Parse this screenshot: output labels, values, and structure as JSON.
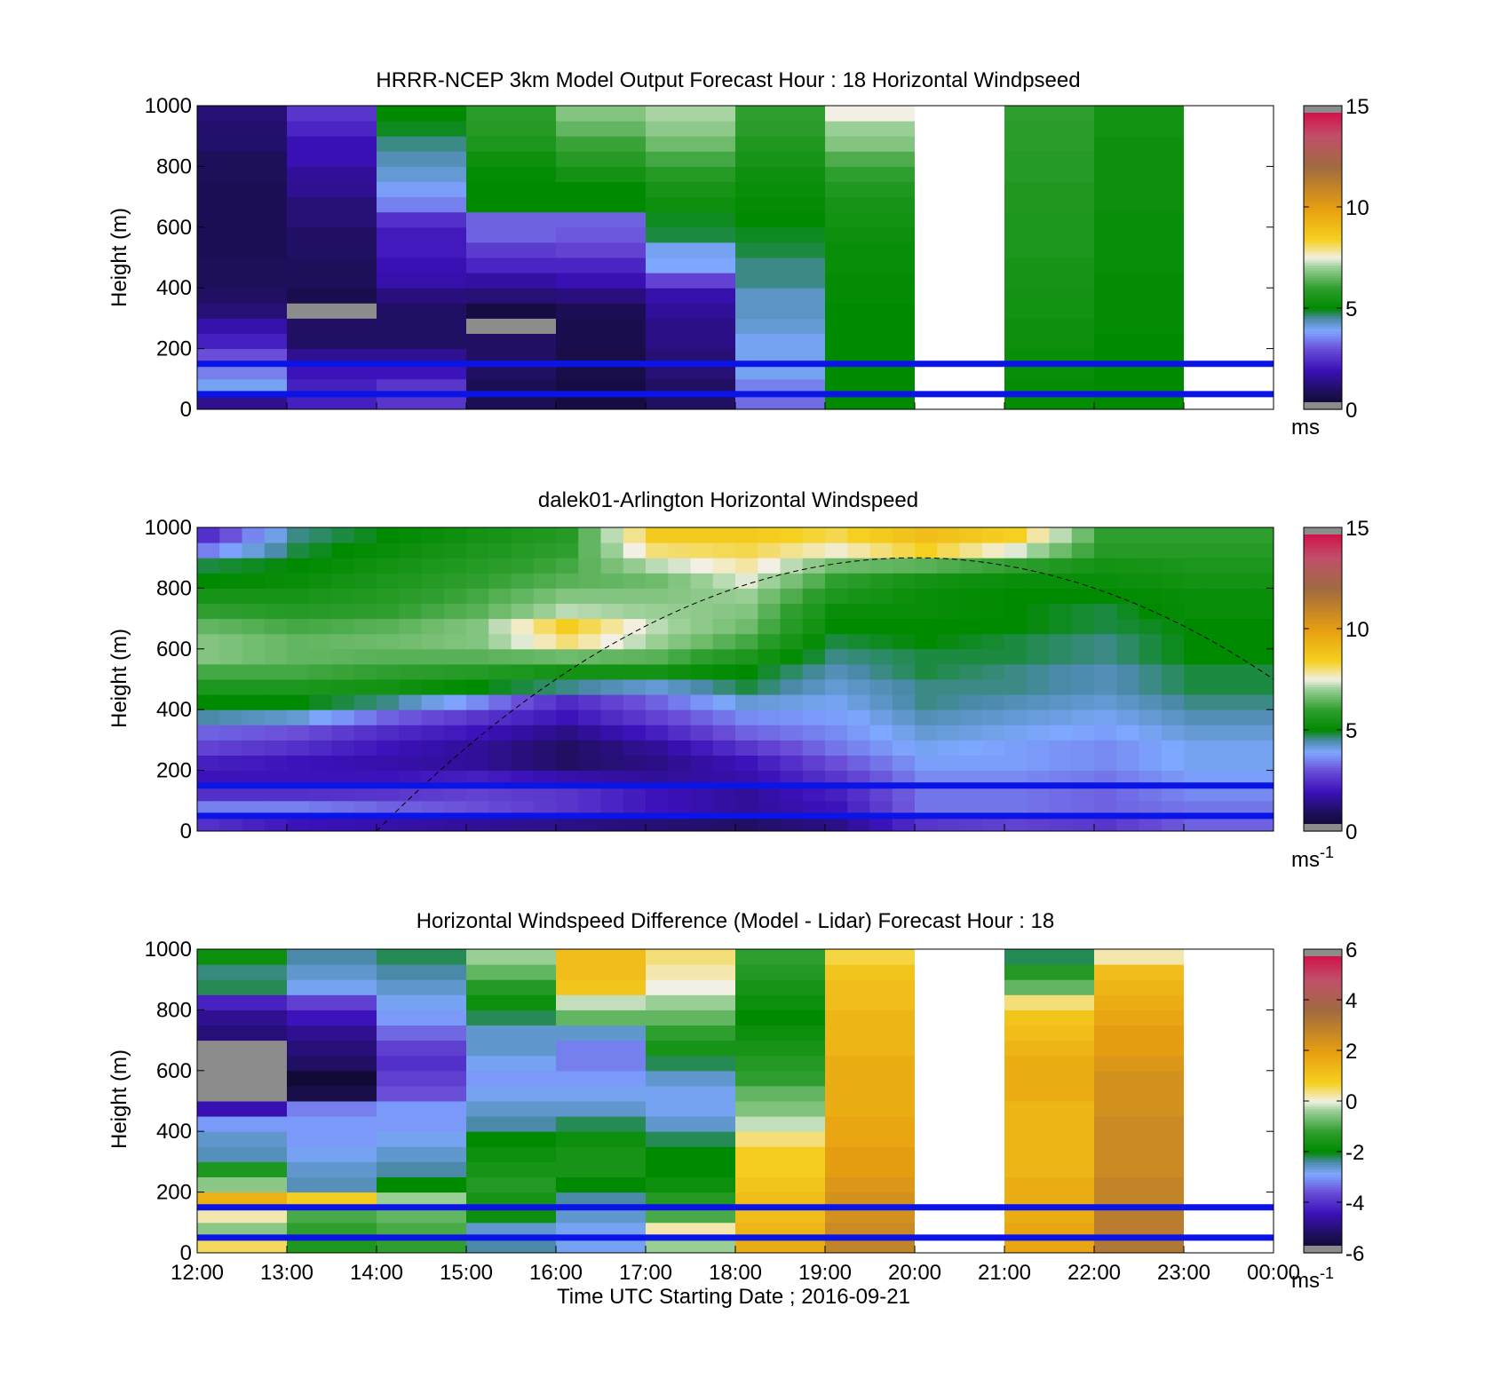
{
  "figure": {
    "xlabel": "Time UTC  Starting Date ; 2016-09-21",
    "x_tick_labels": [
      "12:00",
      "13:00",
      "14:00",
      "15:00",
      "16:00",
      "17:00",
      "18:00",
      "19:00",
      "20:00",
      "21:00",
      "22:00",
      "23:00",
      "00:00"
    ]
  },
  "chart_data": [
    {
      "type": "heatmap",
      "title": "HRRR-NCEP 3km Model Output   Forecast Hour : 18 Horizontal Windpseed",
      "ylabel": "Height (m)",
      "xlim": [
        "12:00",
        "00:00"
      ],
      "ylim": [
        0,
        1000
      ],
      "y_ticks": [
        0,
        200,
        400,
        600,
        800,
        1000
      ],
      "colorbar": {
        "range": [
          0,
          15
        ],
        "ticks": [
          0,
          5,
          10,
          15
        ],
        "unit_label": "ms",
        "unit_exponent": ""
      },
      "reference_lines_m": [
        50,
        150
      ],
      "reference_line_color": "#0a14e6",
      "heights_m": [
        25,
        75,
        125,
        175,
        225,
        275,
        325,
        375,
        425,
        475,
        525,
        575,
        625,
        675,
        725,
        775,
        825,
        875,
        925,
        975
      ],
      "columns": [
        {
          "time": "12:00",
          "values": [
            1.5,
            4,
            3.5,
            3,
            2.2,
            1.8,
            1.2,
            1.0,
            0.9,
            0.9,
            0.8,
            0.8,
            0.8,
            0.8,
            0.8,
            0.9,
            0.9,
            1.1,
            1.1,
            1.2
          ]
        },
        {
          "time": "13:00",
          "values": [
            2.2,
            2.2,
            2.0,
            1.5,
            1.0,
            1.0,
            null,
            0.7,
            0.9,
            0.9,
            1.0,
            1.0,
            1.2,
            1.2,
            1.5,
            1.6,
            1.9,
            1.9,
            2.3,
            2.6
          ]
        },
        {
          "time": "14:00",
          "values": [
            2.6,
            2.6,
            2.0,
            1.5,
            1.0,
            1.0,
            1.0,
            1.3,
            1.8,
            1.9,
            2.1,
            2.1,
            2.5,
            3.5,
            3.8,
            4.2,
            4.4,
            4.6,
            4.9,
            5.0
          ]
        },
        {
          "time": "15:00",
          "values": [
            0.8,
            0.8,
            1.0,
            1.0,
            1.0,
            null,
            0.5,
            1.2,
            1.7,
            2.3,
            2.7,
            3.2,
            3.2,
            5.0,
            5.0,
            5.1,
            5.3,
            5.6,
            5.8,
            5.9
          ]
        },
        {
          "time": "16:00",
          "values": [
            0.5,
            0.5,
            0.6,
            0.6,
            0.7,
            0.7,
            0.8,
            1.3,
            1.9,
            2.3,
            2.8,
            3.1,
            3.2,
            5.0,
            5.0,
            5.4,
            5.8,
            6.1,
            6.5,
            6.8
          ]
        },
        {
          "time": "17:00",
          "values": [
            1.0,
            1.0,
            1.2,
            1.2,
            1.4,
            1.4,
            1.6,
            1.8,
            2.8,
            3.9,
            4.0,
            4.8,
            4.9,
            5.3,
            5.5,
            5.8,
            6.2,
            6.6,
            6.9,
            7.1
          ]
        },
        {
          "time": "18:00",
          "values": [
            3.3,
            3.5,
            4.0,
            4.0,
            4.0,
            4.2,
            4.3,
            4.3,
            4.6,
            4.6,
            4.8,
            4.9,
            5.0,
            5.1,
            5.2,
            5.3,
            5.5,
            5.7,
            5.9,
            6.0
          ]
        },
        {
          "time": "19:00",
          "values": [
            5.0,
            5.0,
            5.0,
            5.0,
            5.0,
            5.0,
            5.0,
            5.1,
            5.1,
            5.2,
            5.2,
            5.3,
            5.4,
            5.5,
            5.7,
            6.0,
            6.3,
            6.8,
            7.0,
            7.5
          ]
        },
        {
          "time": "20:00",
          "values": [
            null,
            null,
            null,
            null,
            null,
            null,
            null,
            null,
            null,
            null,
            null,
            null,
            null,
            null,
            null,
            null,
            null,
            null,
            null,
            null
          ]
        },
        {
          "time": "21:00",
          "values": [
            5.1,
            5.1,
            5.2,
            5.2,
            5.3,
            5.3,
            5.4,
            5.4,
            5.5,
            5.5,
            5.6,
            5.6,
            5.6,
            5.7,
            5.7,
            5.8,
            5.8,
            5.9,
            5.9,
            6.0
          ]
        },
        {
          "time": "22:00",
          "values": [
            5.0,
            5.0,
            5.0,
            5.0,
            5.0,
            5.1,
            5.1,
            5.1,
            5.1,
            5.2,
            5.2,
            5.2,
            5.2,
            5.3,
            5.3,
            5.3,
            5.3,
            5.3,
            5.4,
            5.4
          ]
        },
        {
          "time": "23:00",
          "values": [
            null,
            null,
            null,
            null,
            null,
            null,
            null,
            null,
            null,
            null,
            null,
            null,
            null,
            null,
            null,
            null,
            null,
            null,
            null,
            null
          ]
        }
      ]
    },
    {
      "type": "heatmap",
      "title": "dalek01-Arlington  Horizontal Windspeed",
      "ylabel": "Height (m)",
      "xlim": [
        "12:00",
        "00:00"
      ],
      "ylim": [
        0,
        1000
      ],
      "y_ticks": [
        0,
        200,
        400,
        600,
        800,
        1000
      ],
      "colorbar": {
        "range": [
          0,
          15
        ],
        "ticks": [
          0,
          5,
          10,
          15
        ],
        "unit_label": "ms",
        "unit_exponent": "-1"
      },
      "reference_lines_m": [
        50,
        150
      ],
      "reference_line_color": "#0a14e6",
      "curve": {
        "style": "dashed",
        "peak_time": "20:00",
        "peak_height_m": 900,
        "start_time": "14:00",
        "start_height_m": 0,
        "end_time": "00:00",
        "end_height_m": 430
      },
      "columns_per_hour": 4,
      "heights_m": [
        25,
        75,
        125,
        175,
        225,
        275,
        325,
        375,
        425,
        475,
        525,
        575,
        625,
        675,
        725,
        775,
        825,
        875,
        925,
        975
      ],
      "hourly_profile": [
        {
          "time": "12:00",
          "values": [
            2.5,
            3.5,
            2.5,
            2.0,
            2.2,
            2.8,
            3.2,
            4.5,
            5.0,
            5.6,
            6.2,
            6.8,
            6.8,
            6.5,
            6.0,
            5.5,
            5.0,
            4.8,
            3.5,
            2.5
          ]
        },
        {
          "time": "13:00",
          "values": [
            2.0,
            3.5,
            2.5,
            2.0,
            2.0,
            2.5,
            3.0,
            4.2,
            5.0,
            5.6,
            6.2,
            6.5,
            6.5,
            6.2,
            5.8,
            5.5,
            5.2,
            5.0,
            4.8,
            4.6
          ]
        },
        {
          "time": "14:00",
          "values": [
            1.8,
            3.2,
            2.6,
            2.0,
            1.8,
            2.0,
            2.4,
            3.2,
            4.6,
            5.4,
            6.0,
            6.4,
            6.6,
            6.4,
            6.0,
            5.8,
            5.6,
            5.4,
            5.2,
            5.0
          ]
        },
        {
          "time": "15:00",
          "values": [
            1.6,
            3.0,
            2.8,
            2.2,
            1.6,
            1.6,
            2.0,
            2.6,
            3.6,
            5.0,
            5.8,
            6.4,
            6.8,
            6.8,
            6.4,
            6.2,
            6.0,
            5.8,
            5.6,
            5.4
          ]
        },
        {
          "time": "16:00",
          "values": [
            1.4,
            2.6,
            2.6,
            1.8,
            1.0,
            1.0,
            1.4,
            2.0,
            2.4,
            4.6,
            5.4,
            6.6,
            8.0,
            8.5,
            7.2,
            6.8,
            6.4,
            6.2,
            6.0,
            5.8
          ]
        },
        {
          "time": "17:00",
          "values": [
            1.2,
            2.0,
            2.0,
            1.6,
            1.4,
            1.6,
            2.2,
            2.8,
            3.2,
            4.2,
            5.4,
            6.4,
            7.0,
            7.2,
            7.0,
            6.8,
            6.6,
            7.2,
            8.0,
            8.6
          ]
        },
        {
          "time": "18:00",
          "values": [
            1.0,
            1.6,
            1.6,
            1.8,
            2.0,
            2.6,
            3.2,
            3.6,
            4.2,
            4.8,
            5.0,
            5.6,
            6.2,
            6.6,
            6.8,
            7.0,
            7.4,
            7.8,
            8.2,
            8.6
          ]
        },
        {
          "time": "19:00",
          "values": [
            1.4,
            2.0,
            2.2,
            2.6,
            3.0,
            3.4,
            3.6,
            3.8,
            4.0,
            4.2,
            4.4,
            4.6,
            4.8,
            5.0,
            5.2,
            5.6,
            6.0,
            6.6,
            7.6,
            8.2
          ]
        },
        {
          "time": "20:00",
          "values": [
            2.6,
            3.4,
            3.4,
            3.6,
            3.8,
            4.0,
            4.2,
            4.4,
            4.6,
            4.6,
            4.8,
            4.8,
            5.0,
            5.0,
            5.2,
            5.2,
            5.4,
            6.4,
            8.4,
            9.0
          ]
        },
        {
          "time": "21:00",
          "values": [
            2.8,
            3.4,
            3.4,
            3.6,
            3.8,
            3.8,
            4.0,
            4.2,
            4.4,
            4.6,
            4.6,
            4.8,
            4.8,
            5.0,
            5.0,
            5.0,
            5.2,
            6.0,
            7.4,
            8.4
          ]
        },
        {
          "time": "22:00",
          "values": [
            2.6,
            3.2,
            3.2,
            3.4,
            3.6,
            3.6,
            3.8,
            4.0,
            4.2,
            4.4,
            4.4,
            4.6,
            4.6,
            4.8,
            4.8,
            5.0,
            5.2,
            5.4,
            5.8,
            6.0
          ]
        },
        {
          "time": "23:00",
          "values": [
            3.2,
            3.4,
            3.6,
            3.8,
            4.0,
            4.0,
            4.2,
            4.4,
            4.6,
            4.8,
            4.8,
            5.0,
            5.0,
            5.0,
            5.2,
            5.2,
            5.4,
            5.6,
            5.8,
            6.0
          ]
        }
      ]
    },
    {
      "type": "heatmap",
      "title": "Horizontal Windspeed Difference (Model - Lidar) Forecast Hour : 18",
      "ylabel": "Height (m)",
      "xlabel": "Time UTC  Starting Date ; 2016-09-21",
      "xlim": [
        "12:00",
        "00:00"
      ],
      "ylim": [
        0,
        1000
      ],
      "y_ticks": [
        0,
        200,
        400,
        600,
        800,
        1000
      ],
      "colorbar": {
        "range": [
          -6,
          6
        ],
        "ticks": [
          -6,
          -4,
          -2,
          0,
          2,
          4,
          6
        ],
        "unit_label": "ms",
        "unit_exponent": "-1"
      },
      "reference_lines_m": [
        50,
        150
      ],
      "reference_line_color": "#0a14e6",
      "heights_m": [
        25,
        75,
        125,
        175,
        225,
        275,
        325,
        375,
        425,
        475,
        525,
        575,
        625,
        675,
        725,
        775,
        825,
        875,
        925,
        975
      ],
      "columns": [
        {
          "time": "12:00",
          "values": [
            0.5,
            -0.5,
            0.2,
            1.5,
            -0.5,
            -1.5,
            -2.5,
            -2.6,
            -3.0,
            -4.5,
            null,
            null,
            null,
            null,
            -5.0,
            -4.8,
            -4.2,
            -2.2,
            -2.3,
            -1.8
          ]
        },
        {
          "time": "13:00",
          "values": [
            -1.5,
            -1.2,
            -1.0,
            0.8,
            -2.5,
            -2.6,
            -2.8,
            -3.0,
            -3.0,
            -3.2,
            -5.5,
            -5.8,
            -5.2,
            -5.0,
            -4.8,
            -4.4,
            -3.8,
            -2.8,
            -2.6,
            -2.4
          ]
        },
        {
          "time": "14:00",
          "values": [
            -1.2,
            -1.0,
            -0.8,
            -0.4,
            -2.0,
            -2.4,
            -2.6,
            -2.8,
            -3.0,
            -3.0,
            -3.6,
            -3.8,
            -4.0,
            -3.8,
            -3.4,
            -3.0,
            -2.8,
            -2.6,
            -2.4,
            -2.2
          ]
        },
        {
          "time": "15:00",
          "values": [
            -2.4,
            -2.6,
            -1.8,
            -1.6,
            -1.4,
            -1.6,
            -1.8,
            -2.0,
            -2.4,
            -2.6,
            -2.8,
            -3.0,
            -2.8,
            -2.6,
            -2.6,
            -2.2,
            -1.8,
            -1.4,
            -0.8,
            -0.4
          ]
        },
        {
          "time": "16:00",
          "values": [
            -2.8,
            -2.8,
            -2.6,
            -2.4,
            -2.0,
            -1.6,
            -1.6,
            -1.8,
            -2.2,
            -2.6,
            -2.8,
            -3.0,
            -3.2,
            -3.2,
            -2.6,
            -0.8,
            -0.2,
            1.0,
            1.2,
            1.2
          ]
        },
        {
          "time": "17:00",
          "values": [
            -0.4,
            0.2,
            -1.0,
            -1.4,
            -1.8,
            -2.0,
            -2.0,
            -2.2,
            -2.6,
            -2.8,
            -2.8,
            -2.6,
            -2.2,
            -1.6,
            -1.2,
            -0.8,
            -0.4,
            0.0,
            0.2,
            0.4
          ]
        },
        {
          "time": "18:00",
          "values": [
            1.6,
            1.4,
            1.2,
            1.2,
            1.0,
            0.8,
            0.8,
            0.4,
            -0.2,
            -0.6,
            -0.8,
            -1.2,
            -1.4,
            -1.6,
            -1.8,
            -2.0,
            -1.8,
            -1.6,
            -1.4,
            -1.2
          ]
        },
        {
          "time": "19:00",
          "values": [
            2.8,
            2.6,
            2.4,
            2.4,
            2.2,
            2.0,
            2.0,
            1.8,
            1.8,
            1.6,
            1.6,
            1.6,
            1.6,
            1.4,
            1.4,
            1.4,
            1.2,
            1.2,
            1.0,
            0.6
          ]
        },
        {
          "time": "20:00",
          "values": [
            null,
            null,
            null,
            null,
            null,
            null,
            null,
            null,
            null,
            null,
            null,
            null,
            null,
            null,
            null,
            null,
            null,
            null,
            null,
            null
          ]
        },
        {
          "time": "21:00",
          "values": [
            1.8,
            1.8,
            1.6,
            1.6,
            1.6,
            1.4,
            1.4,
            1.4,
            1.4,
            1.4,
            1.6,
            1.6,
            1.6,
            1.4,
            1.2,
            1.0,
            0.4,
            -0.8,
            -1.4,
            -2.2
          ]
        },
        {
          "time": "22:00",
          "values": [
            3.2,
            3.0,
            3.0,
            2.8,
            2.8,
            2.6,
            2.6,
            2.6,
            2.6,
            2.4,
            2.4,
            2.4,
            2.2,
            2.0,
            2.0,
            1.8,
            1.6,
            1.4,
            1.2,
            0.2
          ]
        },
        {
          "time": "23:00",
          "values": [
            null,
            null,
            null,
            null,
            null,
            null,
            null,
            null,
            null,
            null,
            null,
            null,
            null,
            null,
            null,
            null,
            null,
            null,
            null,
            null
          ]
        }
      ]
    }
  ]
}
